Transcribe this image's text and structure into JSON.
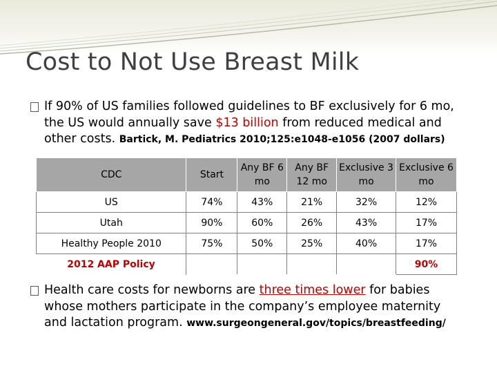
{
  "slide": {
    "title": "Cost to Not Use Breast Milk"
  },
  "bullet1": {
    "line1": "If 90% of US families followed guidelines to BF exclusively for 6 mo,",
    "line2_pre": "the US would annually save ",
    "line2_highlight": "$13 billion",
    "line2_post": " from reduced medical and",
    "line3": "other costs. ",
    "citation": "Bartick, M. Pediatrics 2010;125:e1048-e1056 (2007 dollars)"
  },
  "table": {
    "headers": [
      "CDC",
      "Start",
      "Any BF 6 mo",
      "Any BF 12 mo",
      "Exclusive 3 mo",
      "Exclusive 6 mo"
    ],
    "rows": [
      [
        "US",
        "74%",
        "43%",
        "21%",
        "32%",
        "12%"
      ],
      [
        "Utah",
        "90%",
        "60%",
        "26%",
        "43%",
        "17%"
      ],
      [
        "Healthy People 2010",
        "75%",
        "50%",
        "25%",
        "40%",
        "17%"
      ],
      [
        "2012 AAP Policy",
        "",
        "",
        "",
        "",
        "90%"
      ]
    ]
  },
  "bullet2": {
    "pre": "Health care costs for newborns are ",
    "highlight": "three times lower",
    "post": " for babies",
    "line2": "whose mothers participate in the company’s employee maternity",
    "line3": "and lactation program. ",
    "source": "www.surgeongeneral.gov/topics/breastfeeding/"
  },
  "colors": {
    "accent_red": "#c00000",
    "header_gray": "#a6a6a6",
    "title_gray": "#3f3f3f"
  }
}
